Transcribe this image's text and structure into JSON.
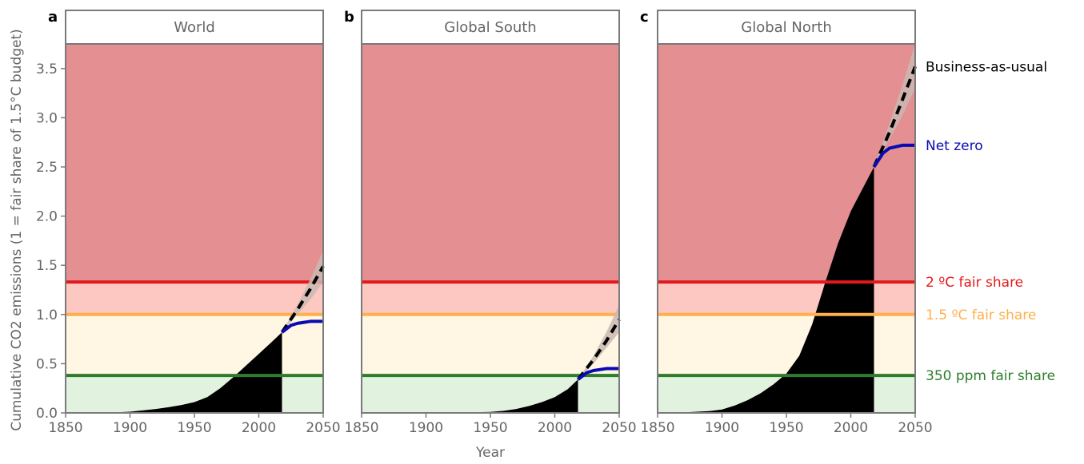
{
  "panel_letters": [
    "a",
    "b",
    "c"
  ],
  "chart_data": [
    {
      "type": "area",
      "title": "World",
      "xlabel": "Year",
      "ylabel": "Cumulative CO2 emissions (1 = fair share of 1.5°C budget)",
      "xlim": [
        1850,
        2050
      ],
      "ylim": [
        0,
        3.75
      ],
      "historical": {
        "x": [
          1850,
          1870,
          1890,
          1900,
          1910,
          1920,
          1930,
          1940,
          1950,
          1960,
          1970,
          1980,
          1990,
          2000,
          2010,
          2018
        ],
        "y": [
          0,
          0.002,
          0.006,
          0.012,
          0.025,
          0.04,
          0.058,
          0.08,
          0.11,
          0.16,
          0.25,
          0.36,
          0.48,
          0.6,
          0.72,
          0.82
        ]
      },
      "business_as_usual": {
        "x": [
          2018,
          2030,
          2040,
          2050
        ],
        "y": [
          0.82,
          1.05,
          1.26,
          1.49
        ],
        "band_low": [
          0.82,
          1.0,
          1.15,
          1.33
        ],
        "band_high": [
          0.82,
          1.1,
          1.36,
          1.65
        ]
      },
      "net_zero": {
        "x": [
          2018,
          2025,
          2030,
          2040,
          2050
        ],
        "y": [
          0.82,
          0.89,
          0.91,
          0.93,
          0.93
        ]
      }
    },
    {
      "type": "area",
      "title": "Global South",
      "xlabel": "Year",
      "xlim": [
        1850,
        2050
      ],
      "ylim": [
        0,
        3.75
      ],
      "historical": {
        "x": [
          1850,
          1900,
          1930,
          1950,
          1960,
          1970,
          1980,
          1990,
          2000,
          2010,
          2018
        ],
        "y": [
          0,
          0.001,
          0.004,
          0.01,
          0.02,
          0.04,
          0.07,
          0.11,
          0.16,
          0.24,
          0.34
        ]
      },
      "business_as_usual": {
        "x": [
          2018,
          2030,
          2040,
          2050
        ],
        "y": [
          0.34,
          0.54,
          0.73,
          0.95
        ],
        "band_low": [
          0.34,
          0.5,
          0.66,
          0.82
        ],
        "band_high": [
          0.34,
          0.58,
          0.82,
          1.1
        ]
      },
      "net_zero": {
        "x": [
          2018,
          2025,
          2030,
          2040,
          2050
        ],
        "y": [
          0.34,
          0.41,
          0.43,
          0.45,
          0.45
        ]
      }
    },
    {
      "type": "area",
      "title": "Global North",
      "xlabel": "Year",
      "xlim": [
        1850,
        2050
      ],
      "ylim": [
        0,
        3.75
      ],
      "historical": {
        "x": [
          1850,
          1870,
          1890,
          1900,
          1910,
          1920,
          1930,
          1940,
          1950,
          1960,
          1970,
          1980,
          1990,
          2000,
          2010,
          2018
        ],
        "y": [
          0,
          0.005,
          0.018,
          0.035,
          0.075,
          0.13,
          0.2,
          0.29,
          0.4,
          0.58,
          0.9,
          1.32,
          1.72,
          2.05,
          2.3,
          2.5
        ]
      },
      "business_as_usual": {
        "x": [
          2018,
          2030,
          2040,
          2050
        ],
        "y": [
          2.5,
          2.85,
          3.18,
          3.52
        ],
        "band_low": [
          2.5,
          2.78,
          3.02,
          3.3
        ],
        "band_high": [
          2.5,
          2.94,
          3.33,
          3.75
        ]
      },
      "net_zero": {
        "x": [
          2018,
          2025,
          2030,
          2040,
          2050
        ],
        "y": [
          2.5,
          2.64,
          2.69,
          2.72,
          2.72
        ]
      }
    }
  ],
  "thresholds": [
    {
      "name": "2 ºC fair share",
      "y": 1.33,
      "line_color": "#e31a1c"
    },
    {
      "name": "1.5 ºC fair share",
      "y": 1.0,
      "line_color": "#fdb04b"
    },
    {
      "name": "350 ppm fair share",
      "y": 0.38,
      "line_color": "#2d7d2d"
    }
  ],
  "scenario_labels": [
    {
      "name": "Business-as-usual",
      "color": "#000000"
    },
    {
      "name": "Net zero",
      "color": "#0a0ab4"
    }
  ],
  "zone_colors": {
    "green": "#e1f2de",
    "cream": "#fff7e3",
    "pink": "#fdc8c1",
    "red": "#e48f91"
  },
  "colors": {
    "historical": "#000000",
    "net_zero": "#0a0ab4",
    "bau_band": "#cbb9b1",
    "axis_text": "#666666"
  },
  "y_ticks": [
    0,
    0.5,
    1.0,
    1.5,
    2.0,
    2.5,
    3.0,
    3.5
  ],
  "y_tick_labels": [
    "0.0",
    "0.5",
    "1.0",
    "1.5",
    "2.0",
    "2.5",
    "3.0",
    "3.5"
  ],
  "x_ticks": [
    1850,
    1900,
    1950,
    2000,
    2050
  ],
  "x_tick_labels": [
    "1850",
    "1900",
    "1950",
    "2000",
    "2050"
  ]
}
